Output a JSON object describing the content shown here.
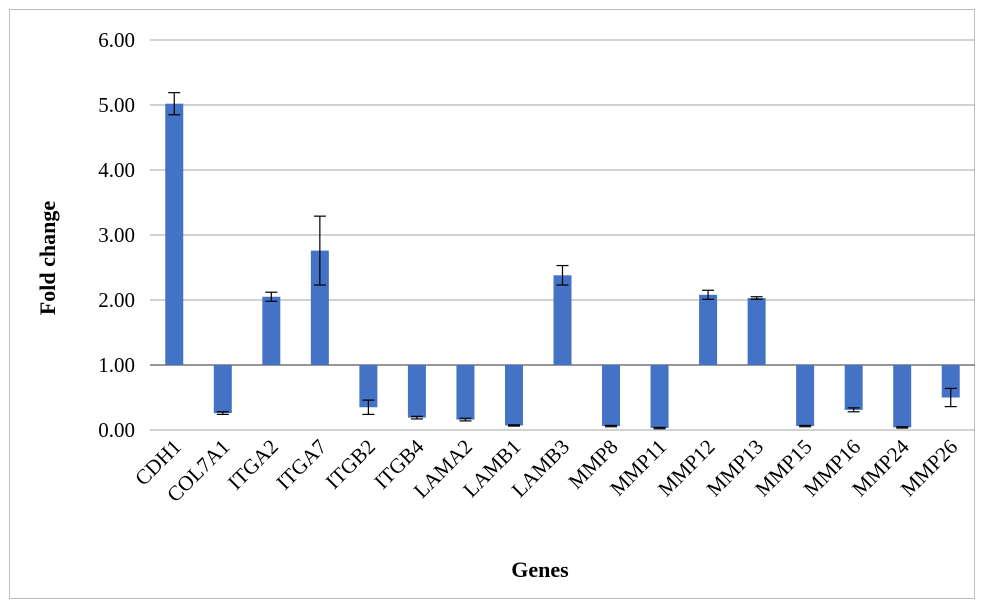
{
  "chart_data": {
    "type": "bar",
    "xlabel": "Genes",
    "ylabel": "Fold change",
    "ylim": [
      0,
      6
    ],
    "yticks": [
      "0.00",
      "1.00",
      "2.00",
      "3.00",
      "4.00",
      "5.00",
      "6.00"
    ],
    "baseline": 1,
    "grid": true,
    "categories": [
      "CDH1",
      "COL7A1",
      "ITGA2",
      "ITGA7",
      "ITGB2",
      "ITGB4",
      "LAMA2",
      "LAMB1",
      "LAMB3",
      "MMP8",
      "MMP11",
      "MMP12",
      "MMP13",
      "MMP15",
      "MMP16",
      "MMP24",
      "MMP26"
    ],
    "values": [
      5.02,
      0.26,
      2.05,
      2.76,
      0.35,
      0.19,
      0.16,
      0.07,
      2.38,
      0.06,
      0.03,
      2.08,
      2.03,
      0.06,
      0.31,
      0.04,
      0.5
    ],
    "errors": [
      0.17,
      0.02,
      0.07,
      0.53,
      0.11,
      0.02,
      0.02,
      0.01,
      0.15,
      0.01,
      0.01,
      0.07,
      0.02,
      0.01,
      0.03,
      0.01,
      0.14
    ],
    "bar_color": "#4472c4",
    "grid_color": "#a6a6a6",
    "axis_color": "#595959"
  }
}
